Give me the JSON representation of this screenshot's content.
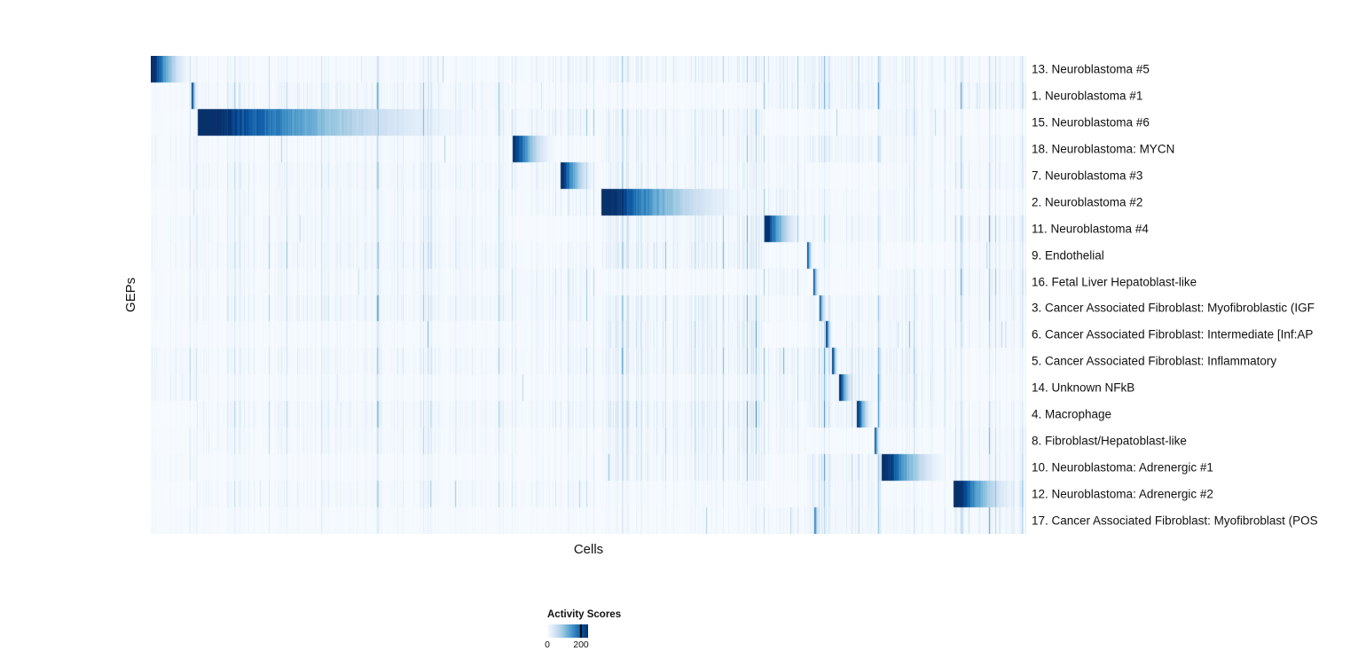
{
  "figure": {
    "xlabel": "Cells",
    "ylabel": "GEPs"
  },
  "legend": {
    "title": "Activity Scores",
    "ticks": [
      "0",
      "200"
    ]
  },
  "chart_data": {
    "type": "heatmap",
    "title": "",
    "xlabel": "Cells",
    "ylabel": "GEPs",
    "colormap": "Blues",
    "grid": false,
    "colorbar": {
      "label": "Activity Scores",
      "min": 0,
      "max": 200,
      "position": "bottom-left"
    },
    "x_axis": {
      "label": "Cells",
      "tick_labels": [],
      "note": "individual cells ordered by assigned GEP; activity score decays left-to-right within each block"
    },
    "n_rows": 18,
    "rows": [
      {
        "label": "13. Neuroblastoma #5",
        "block_start": 0.0,
        "block_end": 0.05,
        "peak": 300
      },
      {
        "label": "1. Neuroblastoma #1",
        "block_start": 0.046,
        "block_end": 0.053,
        "peak": 280
      },
      {
        "label": "15. Neuroblastoma #6",
        "block_start": 0.053,
        "block_end": 0.41,
        "peak": 300
      },
      {
        "label": "18. Neuroblastoma: MYCN",
        "block_start": 0.413,
        "block_end": 0.466,
        "peak": 280
      },
      {
        "label": "7. Neuroblastoma #3",
        "block_start": 0.468,
        "block_end": 0.512,
        "peak": 280
      },
      {
        "label": "2. Neuroblastoma #2",
        "block_start": 0.514,
        "block_end": 0.7,
        "peak": 300
      },
      {
        "label": "11. Neuroblastoma #4",
        "block_start": 0.701,
        "block_end": 0.748,
        "peak": 290
      },
      {
        "label": "9. Endothelial",
        "block_start": 0.749,
        "block_end": 0.757,
        "peak": 260
      },
      {
        "label": "16. Fetal Liver Hepatoblast-like",
        "block_start": 0.756,
        "block_end": 0.764,
        "peak": 260
      },
      {
        "label": "3. Cancer Associated Fibroblast: Myofibroblastic (IGF",
        "block_start": 0.763,
        "block_end": 0.772,
        "peak": 260
      },
      {
        "label": "6. Cancer Associated Fibroblast: Intermediate [Inf:AP",
        "block_start": 0.771,
        "block_end": 0.779,
        "peak": 250
      },
      {
        "label": "5. Cancer Associated Fibroblast: Inflammatory",
        "block_start": 0.778,
        "block_end": 0.786,
        "peak": 250
      },
      {
        "label": "14. Unknown NFkB",
        "block_start": 0.786,
        "block_end": 0.806,
        "peak": 270
      },
      {
        "label": "4. Macrophage",
        "block_start": 0.806,
        "block_end": 0.826,
        "peak": 280
      },
      {
        "label": "8. Fibroblast/Hepatoblast-like",
        "block_start": 0.826,
        "block_end": 0.834,
        "peak": 250
      },
      {
        "label": "10. Neuroblastoma: Adrenergic #1",
        "block_start": 0.834,
        "block_end": 0.917,
        "peak": 300
      },
      {
        "label": "12. Neuroblastoma: Adrenergic #2",
        "block_start": 0.916,
        "block_end": 1.0,
        "peak": 300
      },
      {
        "label": "17. Cancer Associated Fibroblast: Myofibroblast (POS",
        "block_start": 0.757,
        "block_end": 0.764,
        "peak": 240
      }
    ],
    "colormap_stops": [
      "#f7fbff",
      "#deebf7",
      "#c6dbef",
      "#9ecae1",
      "#6baed6",
      "#4292c6",
      "#2171b5",
      "#08519c",
      "#08306b"
    ]
  }
}
